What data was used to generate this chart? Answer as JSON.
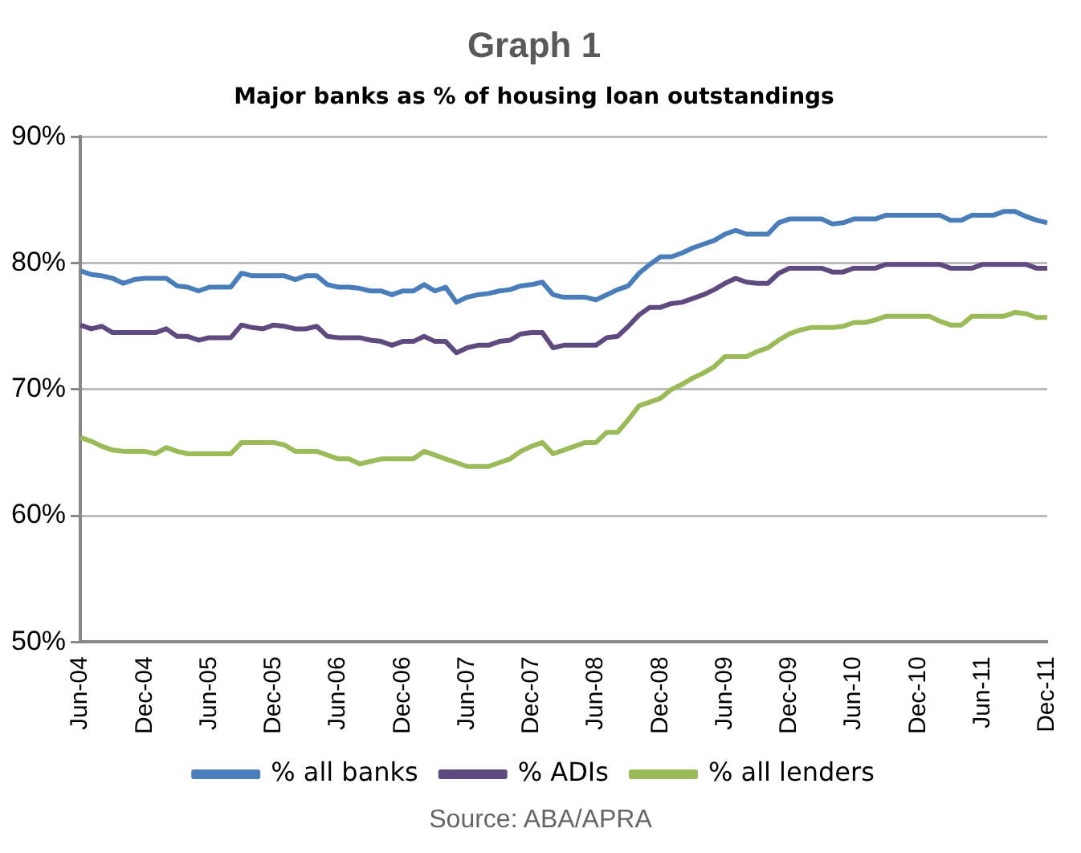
{
  "chart_data": {
    "type": "line",
    "title": "Graph 1",
    "subtitle": "Major banks as % of housing loan outstandings",
    "categories": [
      "Jun-04",
      null,
      null,
      null,
      null,
      null,
      "Dec-04",
      null,
      null,
      null,
      null,
      null,
      "Jun-05",
      null,
      null,
      null,
      null,
      null,
      "Dec-05",
      null,
      null,
      null,
      null,
      null,
      "Jun-06",
      null,
      null,
      null,
      null,
      null,
      "Dec-06",
      null,
      null,
      null,
      null,
      null,
      "Jun-07",
      null,
      null,
      null,
      null,
      null,
      "Dec-07",
      null,
      null,
      null,
      null,
      null,
      "Jun-08",
      null,
      null,
      null,
      null,
      null,
      "Dec-08",
      null,
      null,
      null,
      null,
      null,
      "Jun-09",
      null,
      null,
      null,
      null,
      null,
      "Dec-09",
      null,
      null,
      null,
      null,
      null,
      "Jun-10",
      null,
      null,
      null,
      null,
      null,
      "Dec-10",
      null,
      null,
      null,
      null,
      null,
      "Jun-11",
      null,
      null,
      null,
      null,
      null,
      "Dec-11"
    ],
    "series": [
      {
        "name": "% all banks",
        "color": "#4a7ebb",
        "values": [
          79.4,
          79.1,
          79.0,
          78.8,
          78.4,
          78.7,
          78.8,
          78.8,
          78.8,
          78.2,
          78.1,
          77.8,
          78.1,
          78.1,
          78.1,
          79.2,
          79.0,
          79.0,
          79.0,
          79.0,
          78.7,
          79.0,
          79.0,
          78.3,
          78.1,
          78.1,
          78.0,
          77.8,
          77.8,
          77.5,
          77.8,
          77.8,
          78.3,
          77.8,
          78.1,
          76.9,
          77.3,
          77.5,
          77.6,
          77.8,
          77.9,
          78.2,
          78.3,
          78.5,
          77.5,
          77.3,
          77.3,
          77.3,
          77.1,
          77.5,
          77.9,
          78.2,
          79.2,
          79.9,
          80.5,
          80.5,
          80.8,
          81.2,
          81.5,
          81.8,
          82.3,
          82.6,
          82.3,
          82.3,
          82.3,
          83.2,
          83.5,
          83.5,
          83.5,
          83.5,
          83.1,
          83.2,
          83.5,
          83.5,
          83.5,
          83.8,
          83.8,
          83.8,
          83.8,
          83.8,
          83.8,
          83.4,
          83.4,
          83.8,
          83.8,
          83.8,
          84.1,
          84.1,
          83.7,
          83.4,
          83.2
        ]
      },
      {
        "name": "% ADIs",
        "color": "#5e4a7e",
        "values": [
          75.1,
          74.8,
          75.0,
          74.5,
          74.5,
          74.5,
          74.5,
          74.5,
          74.8,
          74.2,
          74.2,
          73.9,
          74.1,
          74.1,
          74.1,
          75.1,
          74.9,
          74.8,
          75.1,
          75.0,
          74.8,
          74.8,
          75.0,
          74.2,
          74.1,
          74.1,
          74.1,
          73.9,
          73.8,
          73.5,
          73.8,
          73.8,
          74.2,
          73.8,
          73.8,
          72.9,
          73.3,
          73.5,
          73.5,
          73.8,
          73.9,
          74.4,
          74.5,
          74.5,
          73.3,
          73.5,
          73.5,
          73.5,
          73.5,
          74.1,
          74.2,
          75.0,
          75.9,
          76.5,
          76.5,
          76.8,
          76.9,
          77.2,
          77.5,
          77.9,
          78.4,
          78.8,
          78.5,
          78.4,
          78.4,
          79.2,
          79.6,
          79.6,
          79.6,
          79.6,
          79.3,
          79.3,
          79.6,
          79.6,
          79.6,
          79.9,
          79.9,
          79.9,
          79.9,
          79.9,
          79.9,
          79.6,
          79.6,
          79.6,
          79.9,
          79.9,
          79.9,
          79.9,
          79.9,
          79.6,
          79.6
        ]
      },
      {
        "name": "% all lenders",
        "color": "#9bbb59",
        "values": [
          66.2,
          65.9,
          65.5,
          65.2,
          65.1,
          65.1,
          65.1,
          64.9,
          65.4,
          65.1,
          64.9,
          64.9,
          64.9,
          64.9,
          64.9,
          65.8,
          65.8,
          65.8,
          65.8,
          65.6,
          65.1,
          65.1,
          65.1,
          64.8,
          64.5,
          64.5,
          64.1,
          64.3,
          64.5,
          64.5,
          64.5,
          64.5,
          65.1,
          64.8,
          64.5,
          64.2,
          63.9,
          63.9,
          63.9,
          64.2,
          64.5,
          65.1,
          65.5,
          65.8,
          64.9,
          65.2,
          65.5,
          65.8,
          65.8,
          66.6,
          66.6,
          67.6,
          68.7,
          69.0,
          69.3,
          70.0,
          70.4,
          70.9,
          71.3,
          71.8,
          72.6,
          72.6,
          72.6,
          73.0,
          73.3,
          73.9,
          74.4,
          74.7,
          74.9,
          74.9,
          74.9,
          75.0,
          75.3,
          75.3,
          75.5,
          75.8,
          75.8,
          75.8,
          75.8,
          75.8,
          75.4,
          75.1,
          75.1,
          75.8,
          75.8,
          75.8,
          75.8,
          76.1,
          76.0,
          75.7,
          75.7
        ]
      }
    ],
    "ylim": [
      50,
      90
    ],
    "yticks": [
      {
        "value": 50,
        "label": "50%"
      },
      {
        "value": 60,
        "label": "60%"
      },
      {
        "value": 70,
        "label": "70%"
      },
      {
        "value": 80,
        "label": "80%"
      },
      {
        "value": 90,
        "label": "90%"
      }
    ],
    "grid": "y",
    "legend": "bottom",
    "marker": "none",
    "line_style": "solid",
    "annotations": [
      "Source: ABA/APRA"
    ]
  }
}
